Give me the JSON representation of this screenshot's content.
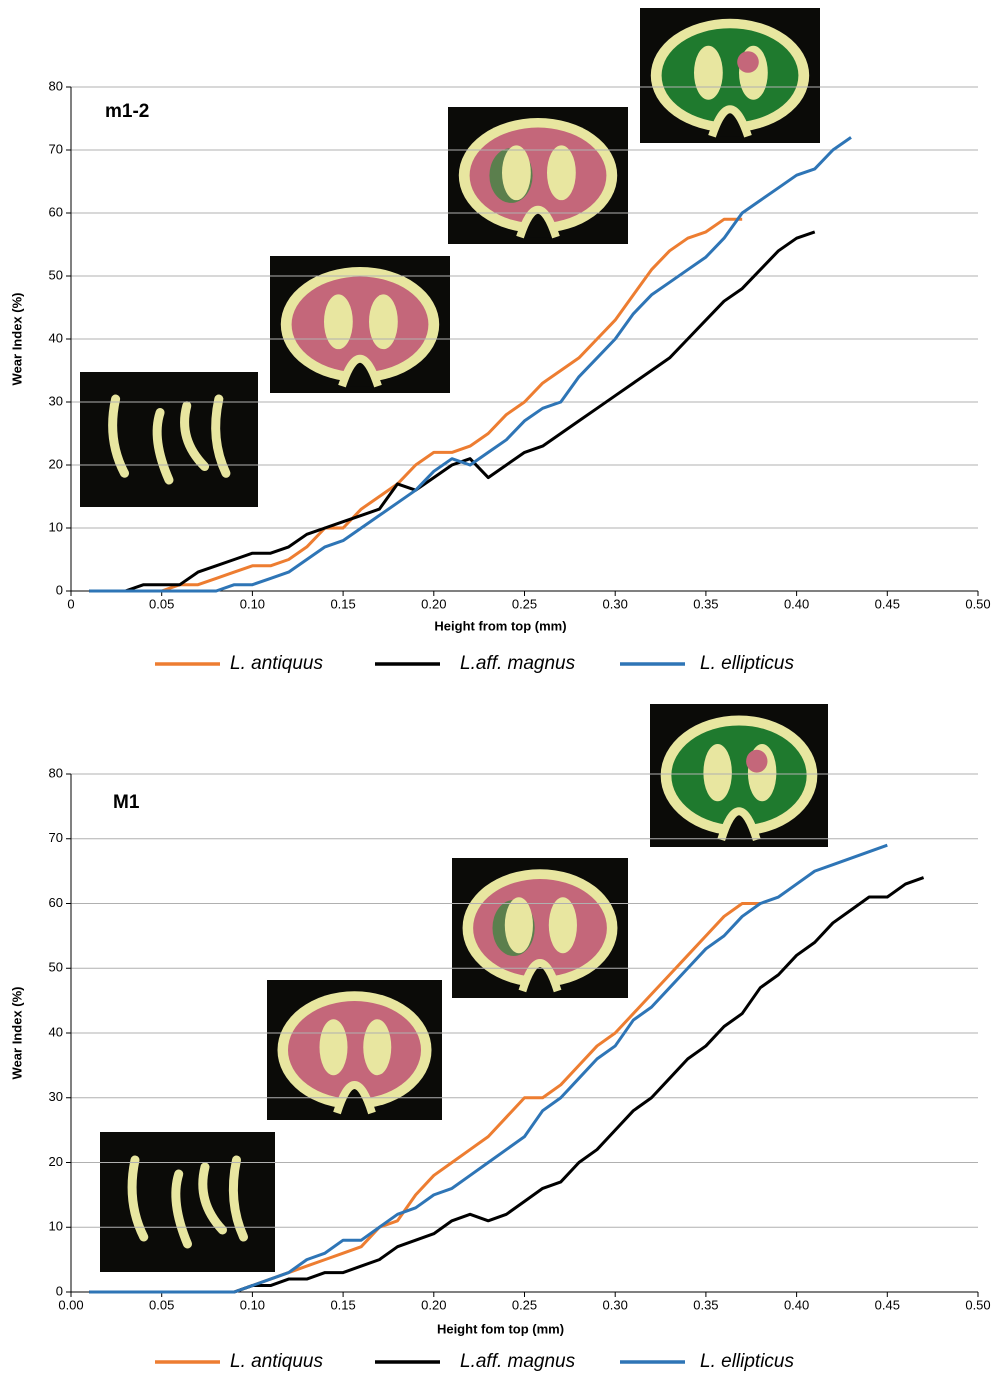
{
  "chart_data": [
    {
      "type": "line",
      "title": "m1-2",
      "x_label": "Height from top (mm)",
      "y_label": "Wear Index (%)",
      "x": [
        0.01,
        0.02,
        0.03,
        0.04,
        0.05,
        0.06,
        0.07,
        0.08,
        0.09,
        0.1,
        0.11,
        0.12,
        0.13,
        0.14,
        0.15,
        0.16,
        0.17,
        0.18,
        0.19,
        0.2,
        0.21,
        0.22,
        0.23,
        0.24,
        0.25,
        0.26,
        0.27,
        0.28,
        0.29,
        0.3,
        0.31,
        0.32,
        0.33,
        0.34,
        0.35,
        0.36,
        0.37,
        0.38,
        0.39,
        0.4,
        0.41,
        0.42,
        0.43
      ],
      "series": [
        {
          "name": "L. antiquus",
          "color": "#ed7d31",
          "values": [
            0,
            0,
            0,
            0,
            0,
            1,
            1,
            2,
            3,
            4,
            4,
            5,
            7,
            10,
            10,
            13,
            15,
            17,
            20,
            22,
            22,
            23,
            25,
            28,
            30,
            33,
            35,
            37,
            40,
            43,
            47,
            51,
            54,
            56,
            57,
            59,
            59,
            null,
            null,
            null,
            null,
            null,
            null
          ]
        },
        {
          "name": "L.aff. magnus",
          "color": "#000000",
          "values": [
            0,
            0,
            0,
            1,
            1,
            1,
            3,
            4,
            5,
            6,
            6,
            7,
            9,
            10,
            11,
            12,
            13,
            17,
            16,
            18,
            20,
            21,
            18,
            20,
            22,
            23,
            25,
            27,
            29,
            31,
            33,
            35,
            37,
            40,
            43,
            46,
            48,
            51,
            54,
            56,
            57,
            null,
            null
          ]
        },
        {
          "name": "L. ellipticus",
          "color": "#2e75b6",
          "values": [
            0,
            0,
            0,
            0,
            0,
            0,
            0,
            0,
            1,
            1,
            2,
            3,
            5,
            7,
            8,
            10,
            12,
            14,
            16,
            19,
            21,
            20,
            22,
            24,
            27,
            29,
            30,
            34,
            37,
            40,
            44,
            47,
            49,
            51,
            53,
            56,
            60,
            62,
            64,
            66,
            67,
            70,
            72
          ]
        }
      ],
      "xlim": [
        0,
        0.5
      ],
      "ylim": [
        0,
        80
      ],
      "xticks": [
        0,
        0.05,
        {
          "value": 0.1,
          "label": "0.10"
        },
        0.15,
        {
          "value": 0.2,
          "label": "0.20"
        },
        0.25,
        {
          "value": 0.3,
          "label": "0.30"
        },
        0.35,
        {
          "value": 0.4,
          "label": "0.40"
        },
        0.45,
        {
          "value": 0.5,
          "label": "0.50"
        }
      ],
      "yticks": [
        0,
        10,
        20,
        30,
        40,
        50,
        60,
        70,
        80
      ],
      "grid": true
    },
    {
      "type": "line",
      "title": "M1",
      "x_label": "Height fom top (mm)",
      "y_label": "Wear Index (%)",
      "x": [
        0.01,
        0.02,
        0.03,
        0.04,
        0.05,
        0.06,
        0.07,
        0.08,
        0.09,
        0.1,
        0.11,
        0.12,
        0.13,
        0.14,
        0.15,
        0.16,
        0.17,
        0.18,
        0.19,
        0.2,
        0.21,
        0.22,
        0.23,
        0.24,
        0.25,
        0.26,
        0.27,
        0.28,
        0.29,
        0.3,
        0.31,
        0.32,
        0.33,
        0.34,
        0.35,
        0.36,
        0.37,
        0.38,
        0.39,
        0.4,
        0.41,
        0.42,
        0.43,
        0.44,
        0.45,
        0.46,
        0.47
      ],
      "series": [
        {
          "name": "L. antiquus",
          "color": "#ed7d31",
          "values": [
            0,
            0,
            0,
            0,
            0,
            0,
            0,
            0,
            0,
            1,
            2,
            3,
            4,
            5,
            6,
            7,
            10,
            11,
            15,
            18,
            20,
            22,
            24,
            27,
            30,
            30,
            32,
            35,
            38,
            40,
            43,
            46,
            49,
            52,
            55,
            58,
            60,
            60,
            null,
            null,
            null,
            null,
            null,
            null,
            null,
            null,
            null
          ]
        },
        {
          "name": "L.aff. magnus",
          "color": "#000000",
          "values": [
            0,
            0,
            0,
            0,
            0,
            0,
            0,
            0,
            0,
            1,
            1,
            2,
            2,
            3,
            3,
            4,
            5,
            7,
            8,
            9,
            11,
            12,
            11,
            12,
            14,
            16,
            17,
            20,
            22,
            25,
            28,
            30,
            33,
            36,
            38,
            41,
            43,
            47,
            49,
            52,
            54,
            57,
            59,
            61,
            61,
            63,
            64
          ]
        },
        {
          "name": "L. ellipticus",
          "color": "#2e75b6",
          "values": [
            0,
            0,
            0,
            0,
            0,
            0,
            0,
            0,
            0,
            1,
            2,
            3,
            5,
            6,
            8,
            8,
            10,
            12,
            13,
            15,
            16,
            18,
            20,
            22,
            24,
            28,
            30,
            33,
            36,
            38,
            42,
            44,
            47,
            50,
            53,
            55,
            58,
            60,
            61,
            63,
            65,
            66,
            67,
            68,
            69,
            null,
            null
          ]
        }
      ],
      "xlim": [
        0,
        0.5
      ],
      "ylim": [
        0,
        80
      ],
      "xticks": [
        {
          "value": 0,
          "label": "0.00"
        },
        0.05,
        {
          "value": 0.1,
          "label": "0.10"
        },
        0.15,
        {
          "value": 0.2,
          "label": "0.20"
        },
        0.25,
        {
          "value": 0.3,
          "label": "0.30"
        },
        0.35,
        {
          "value": 0.4,
          "label": "0.40"
        },
        0.45,
        {
          "value": 0.5,
          "label": "0.50"
        }
      ],
      "yticks": [
        0,
        10,
        20,
        30,
        40,
        50,
        60,
        70,
        80
      ],
      "grid": true
    }
  ]
}
